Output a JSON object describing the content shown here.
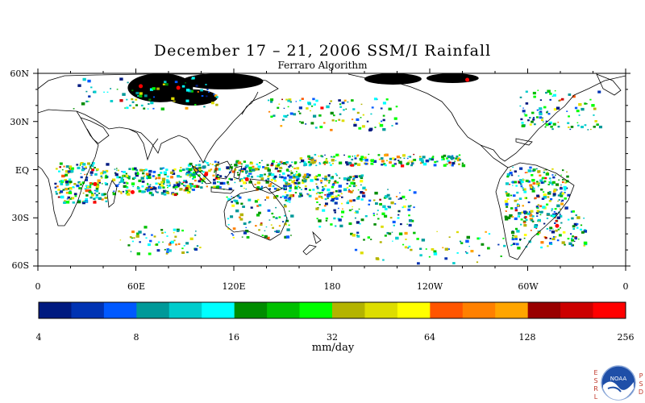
{
  "title": "December 17 – 21, 2006 SSM/I Rainfall",
  "subtitle": "Ferraro Algorithm",
  "lat_labels": [
    "60N",
    "30N",
    "EQ",
    "30S",
    "60S"
  ],
  "lon_labels": [
    "0",
    "60E",
    "120E",
    "180",
    "120W",
    "60W",
    "0"
  ],
  "colorbar": {
    "tick_labels": [
      "4",
      "8",
      "16",
      "32",
      "64",
      "128",
      "256"
    ],
    "units": "mm/day",
    "colors": [
      "#001a80",
      "#0033b3",
      "#0059ff",
      "#009999",
      "#00cccc",
      "#00ffff",
      "#008c00",
      "#00c000",
      "#00ff00",
      "#b3b300",
      "#dddd00",
      "#ffff00",
      "#ff5500",
      "#ff8000",
      "#ffa500",
      "#990000",
      "#cc0000",
      "#ff0000"
    ]
  },
  "logo": {
    "left_letters": [
      "E",
      "S",
      "R",
      "L"
    ],
    "right_letters": [
      "P",
      "S",
      "D"
    ],
    "badge": "NOAA"
  },
  "map_data": {
    "lat_range": [
      -60,
      60
    ],
    "lon_range": [
      0,
      360
    ],
    "no_data_color": "#000000",
    "rain_regions": [
      {
        "lon": [
          10,
          42
        ],
        "lat": [
          -20,
          5
        ],
        "n": 180
      },
      {
        "lon": [
          45,
          95
        ],
        "lat": [
          -15,
          2
        ],
        "n": 220
      },
      {
        "lon": [
          90,
          160
        ],
        "lat": [
          -12,
          6
        ],
        "n": 260
      },
      {
        "lon": [
          150,
          200
        ],
        "lat": [
          -18,
          -2
        ],
        "n": 160
      },
      {
        "lon": [
          160,
          260
        ],
        "lat": [
          3,
          10
        ],
        "n": 170
      },
      {
        "lon": [
          170,
          230
        ],
        "lat": [
          -35,
          -12
        ],
        "n": 110
      },
      {
        "lon": [
          285,
          325
        ],
        "lat": [
          -30,
          2
        ],
        "n": 210
      },
      {
        "lon": [
          290,
          335
        ],
        "lat": [
          -48,
          -25
        ],
        "n": 120
      },
      {
        "lon": [
          115,
          155
        ],
        "lat": [
          -42,
          -15
        ],
        "n": 90
      },
      {
        "lon": [
          140,
          220
        ],
        "lat": [
          25,
          45
        ],
        "n": 100
      },
      {
        "lon": [
          295,
          345
        ],
        "lat": [
          25,
          50
        ],
        "n": 90
      },
      {
        "lon": [
          20,
          110
        ],
        "lat": [
          38,
          58
        ],
        "n": 80
      },
      {
        "lon": [
          50,
          100
        ],
        "lat": [
          -52,
          -35
        ],
        "n": 60
      },
      {
        "lon": [
          190,
          290
        ],
        "lat": [
          -58,
          -38
        ],
        "n": 70
      }
    ],
    "no_data_regions": [
      {
        "lon": [
          55,
          95
        ],
        "lat": [
          42,
          60
        ]
      },
      {
        "lon": [
          88,
          138
        ],
        "lat": [
          50,
          60
        ]
      },
      {
        "lon": [
          80,
          110
        ],
        "lat": [
          40,
          50
        ]
      },
      {
        "lon": [
          200,
          235
        ],
        "lat": [
          53,
          60
        ]
      },
      {
        "lon": [
          238,
          270
        ],
        "lat": [
          54,
          60
        ]
      }
    ],
    "heavy_points": [
      {
        "lon": 35,
        "lat": -9
      },
      {
        "lon": 58,
        "lat": -14
      },
      {
        "lon": 63,
        "lat": 52
      },
      {
        "lon": 86,
        "lat": 51
      },
      {
        "lon": 263,
        "lat": 56
      },
      {
        "lon": 318,
        "lat": -35
      },
      {
        "lon": 103,
        "lat": -3
      },
      {
        "lon": 128,
        "lat": -6
      }
    ]
  }
}
